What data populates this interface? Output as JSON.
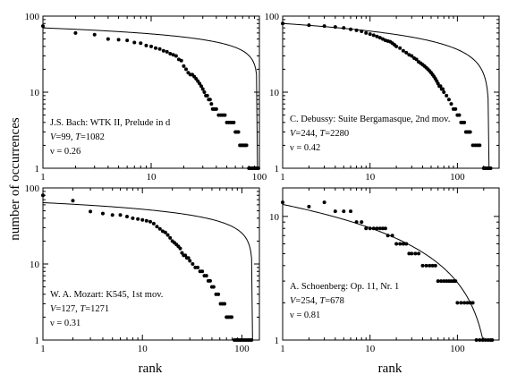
{
  "figure": {
    "ylabel": "number of occurrences",
    "xlabel_left": "rank",
    "xlabel_right": "rank"
  },
  "chart_data": [
    {
      "type": "scatter",
      "scale": "log-log",
      "xlim": [
        1,
        100
      ],
      "ylim": [
        1,
        100
      ],
      "xticks": [
        "1",
        "10",
        "100"
      ],
      "yticks": [
        "1",
        "10",
        "100"
      ],
      "annotation": {
        "line1": "J.S. Bach: WTK II, Prelude in d",
        "line2": "V=99, T=1082",
        "line3": "ν = 0.26"
      },
      "fit_curve": {
        "A": 70,
        "xmax": 96
      },
      "points": [
        [
          1,
          74
        ],
        [
          2,
          60
        ],
        [
          3,
          57
        ],
        [
          4,
          50
        ],
        [
          5,
          49
        ],
        [
          6,
          48
        ],
        [
          7,
          45
        ],
        [
          8,
          44
        ],
        [
          9,
          41
        ],
        [
          10,
          40
        ],
        [
          11,
          38
        ],
        [
          12,
          37
        ],
        [
          13,
          35
        ],
        [
          14,
          34
        ],
        [
          15,
          32
        ],
        [
          16,
          31
        ],
        [
          17,
          30
        ],
        [
          18,
          27
        ],
        [
          19,
          26
        ],
        [
          20,
          22
        ],
        [
          21,
          20
        ],
        [
          22,
          18
        ],
        [
          23,
          17
        ],
        [
          24,
          17
        ],
        [
          25,
          16
        ],
        [
          26,
          15
        ],
        [
          27,
          14
        ],
        [
          28,
          13
        ],
        [
          29,
          12
        ],
        [
          30,
          11
        ],
        [
          31,
          10
        ],
        [
          32,
          9
        ],
        [
          33,
          9
        ],
        [
          34,
          8
        ],
        [
          35,
          8
        ],
        [
          36,
          7
        ],
        [
          37,
          6
        ],
        [
          38,
          6
        ],
        [
          39,
          6
        ],
        [
          40,
          6
        ],
        [
          42,
          5
        ],
        [
          44,
          5
        ],
        [
          46,
          5
        ],
        [
          48,
          5
        ],
        [
          50,
          4
        ],
        [
          52,
          4
        ],
        [
          54,
          4
        ],
        [
          56,
          4
        ],
        [
          58,
          4
        ],
        [
          60,
          3
        ],
        [
          62,
          3
        ],
        [
          64,
          3
        ],
        [
          66,
          2
        ],
        [
          68,
          2
        ],
        [
          70,
          2
        ],
        [
          72,
          2
        ],
        [
          74,
          2
        ],
        [
          76,
          2
        ],
        [
          80,
          1
        ],
        [
          83,
          1
        ],
        [
          86,
          1
        ],
        [
          89,
          1
        ],
        [
          92,
          1
        ],
        [
          95,
          1
        ],
        [
          98,
          1
        ]
      ]
    },
    {
      "type": "scatter",
      "scale": "log-log",
      "xlim": [
        1,
        300
      ],
      "ylim": [
        1,
        100
      ],
      "xticks": [
        "1",
        "10",
        "100"
      ],
      "yticks": [
        "1",
        "10",
        "100"
      ],
      "annotation": {
        "line1": "C. Debussy: Suite Bergamasque, 2nd mov.",
        "line2": "V=244, T=2280",
        "line3": "ν = 0.42"
      },
      "fit_curve": {
        "A": 80,
        "xmax": 230
      },
      "points": [
        [
          1,
          80
        ],
        [
          2,
          76
        ],
        [
          3,
          74
        ],
        [
          4,
          72
        ],
        [
          5,
          70
        ],
        [
          6,
          67
        ],
        [
          7,
          65
        ],
        [
          8,
          63
        ],
        [
          9,
          60
        ],
        [
          10,
          58
        ],
        [
          11,
          56
        ],
        [
          12,
          54
        ],
        [
          13,
          52
        ],
        [
          14,
          50
        ],
        [
          15,
          48
        ],
        [
          16,
          47
        ],
        [
          17,
          46
        ],
        [
          18,
          44
        ],
        [
          19,
          42
        ],
        [
          20,
          40
        ],
        [
          22,
          38
        ],
        [
          24,
          35
        ],
        [
          26,
          33
        ],
        [
          28,
          31
        ],
        [
          30,
          30
        ],
        [
          32,
          28
        ],
        [
          34,
          27
        ],
        [
          36,
          25
        ],
        [
          38,
          24
        ],
        [
          40,
          23
        ],
        [
          42,
          22
        ],
        [
          44,
          21
        ],
        [
          46,
          20
        ],
        [
          48,
          19
        ],
        [
          50,
          18
        ],
        [
          52,
          17
        ],
        [
          54,
          16
        ],
        [
          56,
          15
        ],
        [
          58,
          14
        ],
        [
          60,
          13
        ],
        [
          62,
          12
        ],
        [
          64,
          12
        ],
        [
          66,
          11
        ],
        [
          68,
          11
        ],
        [
          70,
          10
        ],
        [
          75,
          9
        ],
        [
          80,
          8
        ],
        [
          85,
          7
        ],
        [
          90,
          6
        ],
        [
          95,
          6
        ],
        [
          100,
          5
        ],
        [
          105,
          5
        ],
        [
          110,
          4
        ],
        [
          115,
          4
        ],
        [
          120,
          4
        ],
        [
          125,
          3
        ],
        [
          130,
          3
        ],
        [
          135,
          3
        ],
        [
          140,
          3
        ],
        [
          150,
          2
        ],
        [
          160,
          2
        ],
        [
          170,
          2
        ],
        [
          180,
          2
        ],
        [
          200,
          1
        ],
        [
          210,
          1
        ],
        [
          220,
          1
        ],
        [
          230,
          1
        ],
        [
          240,
          1
        ]
      ]
    },
    {
      "type": "scatter",
      "scale": "log-log",
      "xlim": [
        1,
        150
      ],
      "ylim": [
        1,
        100
      ],
      "xticks": [
        "1",
        "10",
        "100"
      ],
      "yticks": [
        "1",
        "10",
        "100"
      ],
      "annotation": {
        "line1": "W. A. Mozart: K545, 1st mov.",
        "line2": "V=127, T=1271",
        "line3": "ν = 0.31"
      },
      "fit_curve": {
        "A": 64,
        "xmax": 128
      },
      "points": [
        [
          1,
          80
        ],
        [
          2,
          68
        ],
        [
          3,
          49
        ],
        [
          4,
          46
        ],
        [
          5,
          44
        ],
        [
          6,
          44
        ],
        [
          7,
          42
        ],
        [
          8,
          40
        ],
        [
          9,
          39
        ],
        [
          10,
          38
        ],
        [
          11,
          37
        ],
        [
          12,
          36
        ],
        [
          13,
          34
        ],
        [
          14,
          31
        ],
        [
          15,
          29
        ],
        [
          16,
          27
        ],
        [
          17,
          26
        ],
        [
          18,
          24
        ],
        [
          19,
          22
        ],
        [
          20,
          20
        ],
        [
          21,
          19
        ],
        [
          22,
          18
        ],
        [
          23,
          17
        ],
        [
          24,
          16
        ],
        [
          25,
          14
        ],
        [
          26,
          13
        ],
        [
          27,
          13
        ],
        [
          28,
          12
        ],
        [
          29,
          12
        ],
        [
          30,
          11
        ],
        [
          32,
          10
        ],
        [
          34,
          9
        ],
        [
          36,
          9
        ],
        [
          38,
          8
        ],
        [
          40,
          8
        ],
        [
          42,
          7
        ],
        [
          44,
          7
        ],
        [
          46,
          6
        ],
        [
          48,
          6
        ],
        [
          50,
          5
        ],
        [
          52,
          5
        ],
        [
          55,
          4
        ],
        [
          58,
          4
        ],
        [
          61,
          3
        ],
        [
          64,
          3
        ],
        [
          67,
          3
        ],
        [
          70,
          2
        ],
        [
          73,
          2
        ],
        [
          76,
          2
        ],
        [
          79,
          2
        ],
        [
          84,
          1
        ],
        [
          88,
          1
        ],
        [
          92,
          1
        ],
        [
          96,
          1
        ],
        [
          100,
          1
        ],
        [
          105,
          1
        ],
        [
          110,
          1
        ],
        [
          115,
          1
        ],
        [
          120,
          1
        ],
        [
          125,
          1
        ]
      ]
    },
    {
      "type": "scatter",
      "scale": "log-log",
      "xlim": [
        1,
        300
      ],
      "ylim": [
        1,
        17
      ],
      "xticks": [
        "1",
        "10",
        "100"
      ],
      "yticks": [
        "1",
        "10"
      ],
      "annotation": {
        "line1": "A. Schoenberg: Op. 11, Nr. 1",
        "line2": "V=254, T=678",
        "line3": "ν = 0.81"
      },
      "fit_curve": {
        "A": 12.5,
        "xmax": 250
      },
      "points": [
        [
          1,
          13
        ],
        [
          2,
          12
        ],
        [
          3,
          13
        ],
        [
          4,
          11
        ],
        [
          5,
          11
        ],
        [
          6,
          11
        ],
        [
          7,
          9
        ],
        [
          8,
          9
        ],
        [
          9,
          8
        ],
        [
          10,
          8
        ],
        [
          11,
          8
        ],
        [
          12,
          8
        ],
        [
          13,
          8
        ],
        [
          14,
          8
        ],
        [
          15,
          8
        ],
        [
          16,
          7
        ],
        [
          18,
          7
        ],
        [
          20,
          6
        ],
        [
          22,
          6
        ],
        [
          24,
          6
        ],
        [
          26,
          6
        ],
        [
          28,
          5
        ],
        [
          30,
          5
        ],
        [
          33,
          5
        ],
        [
          36,
          5
        ],
        [
          40,
          4
        ],
        [
          44,
          4
        ],
        [
          48,
          4
        ],
        [
          52,
          4
        ],
        [
          56,
          4
        ],
        [
          60,
          3
        ],
        [
          65,
          3
        ],
        [
          70,
          3
        ],
        [
          75,
          3
        ],
        [
          80,
          3
        ],
        [
          85,
          3
        ],
        [
          90,
          3
        ],
        [
          95,
          3
        ],
        [
          100,
          2
        ],
        [
          110,
          2
        ],
        [
          120,
          2
        ],
        [
          130,
          2
        ],
        [
          140,
          2
        ],
        [
          150,
          2
        ],
        [
          165,
          1
        ],
        [
          180,
          1
        ],
        [
          195,
          1
        ],
        [
          210,
          1
        ],
        [
          225,
          1
        ],
        [
          240,
          1
        ],
        [
          250,
          1
        ]
      ]
    }
  ]
}
